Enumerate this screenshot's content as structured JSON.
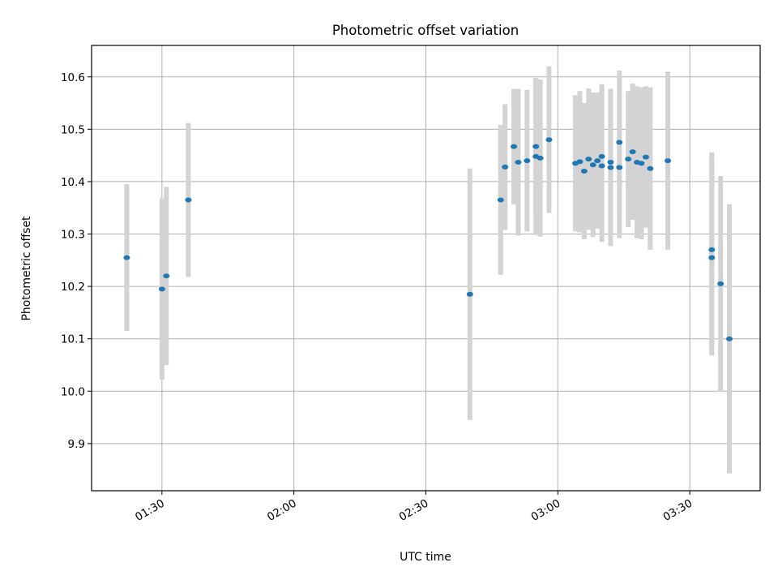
{
  "chart_data": {
    "type": "scatter",
    "title": "Photometric offset variation",
    "xlabel": "UTC time",
    "ylabel": "Photometric offset",
    "grid": true,
    "legend": "none",
    "xlim": [
      "01:14",
      "03:46"
    ],
    "ylim": [
      9.81,
      10.66
    ],
    "x_ticks": [
      "01:30",
      "02:00",
      "02:30",
      "03:00",
      "03:30"
    ],
    "y_ticks": [
      9.9,
      10.0,
      10.1,
      10.2,
      10.3,
      10.4,
      10.5,
      10.6
    ],
    "colors": {
      "point": "#1f77b4",
      "errorbar": "#d3d3d3",
      "grid": "#b0b0b0"
    },
    "series": [
      {
        "name": "offset",
        "points": [
          {
            "t": "01:22",
            "y": 10.255,
            "err": 0.14
          },
          {
            "t": "01:30",
            "y": 10.195,
            "err": 0.173
          },
          {
            "t": "01:31",
            "y": 10.22,
            "err": 0.17
          },
          {
            "t": "01:36",
            "y": 10.365,
            "err": 0.147
          },
          {
            "t": "02:40",
            "y": 10.185,
            "err": 0.24
          },
          {
            "t": "02:47",
            "y": 10.365,
            "err": 0.143
          },
          {
            "t": "02:48",
            "y": 10.428,
            "err": 0.12
          },
          {
            "t": "02:50",
            "y": 10.467,
            "err": 0.11
          },
          {
            "t": "02:51",
            "y": 10.437,
            "err": 0.14
          },
          {
            "t": "02:53",
            "y": 10.44,
            "err": 0.135
          },
          {
            "t": "02:55",
            "y": 10.467,
            "err": 0.13
          },
          {
            "t": "02:55",
            "y": 10.448,
            "err": 0.15
          },
          {
            "t": "02:56",
            "y": 10.445,
            "err": 0.15
          },
          {
            "t": "02:58",
            "y": 10.48,
            "err": 0.14
          },
          {
            "t": "03:04",
            "y": 10.435,
            "err": 0.13
          },
          {
            "t": "03:05",
            "y": 10.438,
            "err": 0.135
          },
          {
            "t": "03:06",
            "y": 10.42,
            "err": 0.13
          },
          {
            "t": "03:07",
            "y": 10.443,
            "err": 0.135
          },
          {
            "t": "03:08",
            "y": 10.432,
            "err": 0.138
          },
          {
            "t": "03:09",
            "y": 10.44,
            "err": 0.13
          },
          {
            "t": "03:10",
            "y": 10.448,
            "err": 0.138
          },
          {
            "t": "03:10",
            "y": 10.43,
            "err": 0.145
          },
          {
            "t": "03:12",
            "y": 10.437,
            "err": 0.14
          },
          {
            "t": "03:12",
            "y": 10.427,
            "err": 0.15
          },
          {
            "t": "03:14",
            "y": 10.475,
            "err": 0.137
          },
          {
            "t": "03:14",
            "y": 10.427,
            "err": 0.135
          },
          {
            "t": "03:16",
            "y": 10.443,
            "err": 0.13
          },
          {
            "t": "03:17",
            "y": 10.457,
            "err": 0.13
          },
          {
            "t": "03:18",
            "y": 10.437,
            "err": 0.145
          },
          {
            "t": "03:19",
            "y": 10.435,
            "err": 0.145
          },
          {
            "t": "03:20",
            "y": 10.447,
            "err": 0.135
          },
          {
            "t": "03:21",
            "y": 10.425,
            "err": 0.155
          },
          {
            "t": "03:25",
            "y": 10.44,
            "err": 0.17
          },
          {
            "t": "03:35",
            "y": 10.255,
            "err": 0.187
          },
          {
            "t": "03:35",
            "y": 10.27,
            "err": 0.186
          },
          {
            "t": "03:37",
            "y": 10.205,
            "err": 0.206
          },
          {
            "t": "03:39",
            "y": 10.1,
            "err": 0.257
          }
        ]
      }
    ]
  }
}
